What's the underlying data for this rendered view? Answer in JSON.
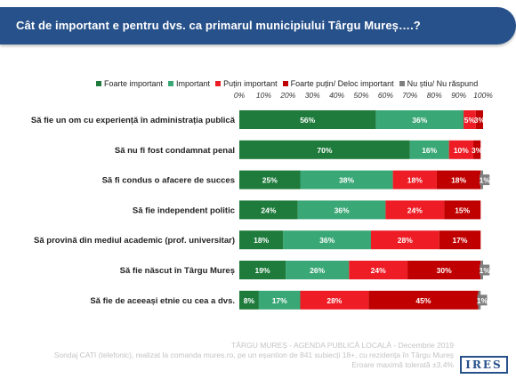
{
  "header": {
    "title": "Cât de important e pentru dvs. ca primarul municipiului Târgu Mureș….?"
  },
  "colors": {
    "banner": "#27518a",
    "foarte_important": "#1e7b3c",
    "important": "#3aa776",
    "putin_important": "#ee1c25",
    "foarte_putin": "#c00000",
    "nu_stiu": "#7f7f7f"
  },
  "chart_data": {
    "type": "bar",
    "orientation": "horizontal",
    "stacked": true,
    "xlim": [
      0,
      100
    ],
    "x_ticks": [
      "0%",
      "10%",
      "20%",
      "30%",
      "40%",
      "50%",
      "60%",
      "70%",
      "80%",
      "90%",
      "100%"
    ],
    "legend_position": "top",
    "categories": [
      "Să fie un om cu experiență în administrația publică",
      "Să nu fi fost condamnat penal",
      "Să fi condus o afacere de succes",
      "Să fie independent politic",
      "Să provină din mediul academic (prof. universitar)",
      "Să fie născut în Târgu Mureș",
      "Să fie de aceeași etnie cu cea a dvs."
    ],
    "series": [
      {
        "name": "Foarte important",
        "color": "#1e7b3c",
        "values": [
          56,
          70,
          25,
          24,
          18,
          19,
          8
        ]
      },
      {
        "name": "Important",
        "color": "#3aa776",
        "values": [
          36,
          16,
          38,
          36,
          36,
          26,
          17
        ]
      },
      {
        "name": "Puțin important",
        "color": "#ee1c25",
        "values": [
          5,
          10,
          18,
          24,
          28,
          24,
          28
        ]
      },
      {
        "name": "Foarte puțin/ Deloc important",
        "color": "#c00000",
        "values": [
          3,
          3,
          18,
          15,
          17,
          30,
          45
        ]
      },
      {
        "name": "Nu știu/ Nu răspund",
        "color": "#7f7f7f",
        "values": [
          0,
          0,
          1,
          0,
          0,
          1,
          1
        ]
      }
    ],
    "data_labels": [
      [
        "56%",
        "36%",
        "5%",
        "3%",
        ""
      ],
      [
        "70%",
        "16%",
        "10%",
        "3%",
        ""
      ],
      [
        "25%",
        "38%",
        "18%",
        "18%",
        "1%"
      ],
      [
        "24%",
        "36%",
        "24%",
        "15%",
        ""
      ],
      [
        "18%",
        "36%",
        "28%",
        "17%",
        ""
      ],
      [
        "19%",
        "26%",
        "24%",
        "30%",
        "1%"
      ],
      [
        "8%",
        "17%",
        "28%",
        "45%",
        "1%"
      ]
    ]
  },
  "footer": {
    "line1": "TÂRGU MUREȘ - AGENDA PUBLICĂ LOCALĂ - Decembrie 2019",
    "line2": "Sondaj CATI (telefonic), realizat la comanda mures.ro, pe un eșantion de 841 subiecți 18+, cu rezidența în Târgu Mureș",
    "line3": "Eroare maximă tolerată ±3,4%"
  },
  "logo": {
    "text": "IRES"
  }
}
